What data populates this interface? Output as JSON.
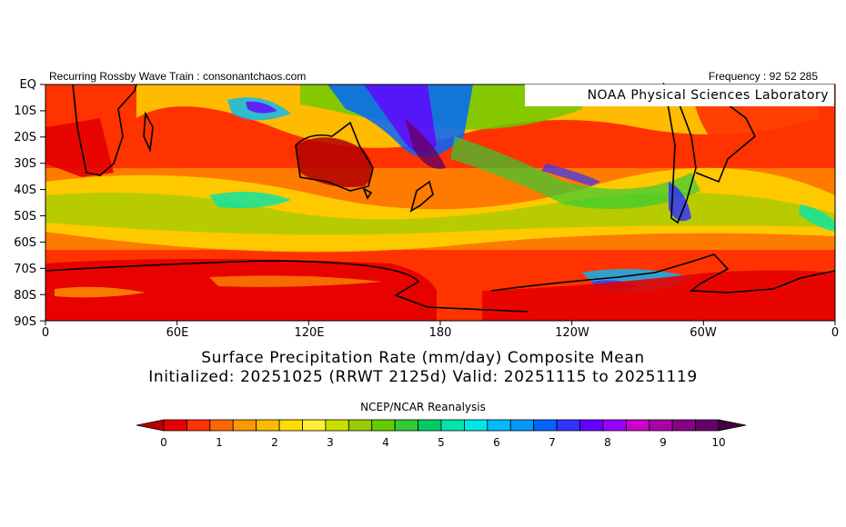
{
  "header": {
    "left": "Recurring Rossby Wave Train : consonantchaos.com",
    "right": "Frequency : 92 52 285",
    "lab": "NOAA Physical Sciences Laboratory"
  },
  "lat_labels": [
    "EQ",
    "10S",
    "20S",
    "30S",
    "40S",
    "50S",
    "60S",
    "70S",
    "80S",
    "90S"
  ],
  "lon_labels": [
    "0",
    "60E",
    "120E",
    "180",
    "120W",
    "60W",
    "0"
  ],
  "title_line1": "Surface Precipitation Rate (mm/day) Composite Mean",
  "title_line2": "Initialized: 20251025 (RRWT 2125d) Valid: 20251115 to 20251119",
  "source": "NCEP/NCAR Reanalysis",
  "colorbar": {
    "colors": [
      "#b30000",
      "#e60000",
      "#ff3300",
      "#ff6600",
      "#ff9900",
      "#ffbb00",
      "#ffdd00",
      "#ffee33",
      "#ccdd00",
      "#99cc00",
      "#66cc00",
      "#33cc33",
      "#00cc66",
      "#00e6aa",
      "#00e6e6",
      "#00bbff",
      "#0099ff",
      "#0066ff",
      "#3333ff",
      "#6600ff",
      "#9900ff",
      "#cc00cc",
      "#aa00aa",
      "#880088",
      "#660066",
      "#440044"
    ],
    "tick_labels": [
      "0",
      "1",
      "2",
      "3",
      "4",
      "5",
      "6",
      "7",
      "8",
      "9",
      "10"
    ]
  }
}
